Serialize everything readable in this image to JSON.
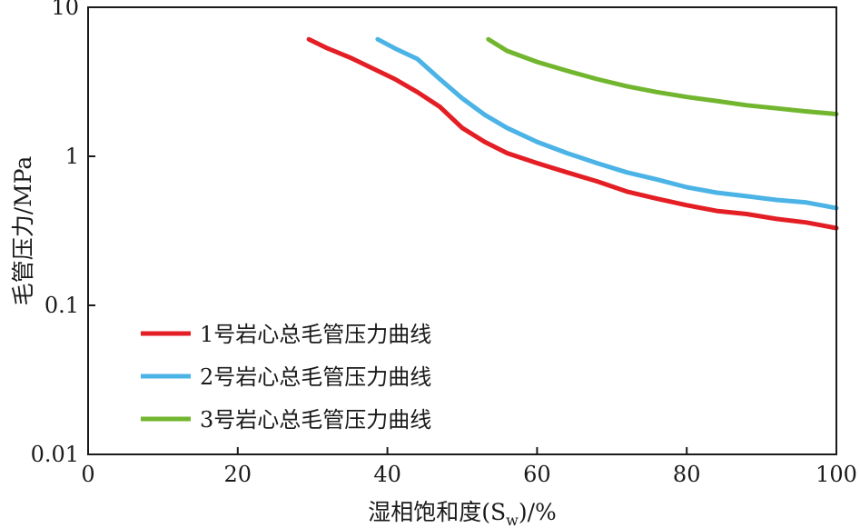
{
  "chart_data": {
    "type": "line",
    "title": "",
    "xlabel": "湿相饱和度(S",
    "xlabel_sub": "w",
    "xlabel_tail": ")/%",
    "ylabel": "毛管压力/MPa",
    "xlim": [
      0,
      100
    ],
    "ylim": [
      0.01,
      10
    ],
    "yscale": "log",
    "x_ticks": [
      "0",
      "20",
      "40",
      "60",
      "80",
      "100"
    ],
    "y_ticks": [
      "0.01",
      "0.1",
      "1",
      "10"
    ],
    "legend_position": "lower-left",
    "series": [
      {
        "name": "1号岩心总毛管压力曲线",
        "color": "#e31e24",
        "x": [
          29.5,
          32,
          35,
          38,
          41,
          44,
          47,
          50,
          53,
          56,
          60,
          64,
          68,
          72,
          76,
          80,
          84,
          88,
          92,
          96,
          100
        ],
        "y": [
          6.1,
          5.3,
          4.6,
          3.9,
          3.3,
          2.7,
          2.15,
          1.55,
          1.25,
          1.05,
          0.9,
          0.78,
          0.68,
          0.58,
          0.52,
          0.47,
          0.43,
          0.41,
          0.38,
          0.36,
          0.33
        ]
      },
      {
        "name": "2号岩心总毛管压力曲线",
        "color": "#4bb3e6",
        "x": [
          38.7,
          41,
          44,
          47,
          50,
          53,
          56,
          60,
          64,
          68,
          72,
          76,
          80,
          84,
          88,
          92,
          96,
          100
        ],
        "y": [
          6.1,
          5.3,
          4.5,
          3.3,
          2.45,
          1.9,
          1.55,
          1.25,
          1.05,
          0.9,
          0.78,
          0.7,
          0.62,
          0.57,
          0.54,
          0.51,
          0.49,
          0.45
        ]
      },
      {
        "name": "3号岩心总毛管压力曲线",
        "color": "#72b62f",
        "x": [
          53.5,
          56,
          60,
          64,
          68,
          72,
          76,
          80,
          84,
          88,
          92,
          96,
          100
        ],
        "y": [
          6.1,
          5.1,
          4.3,
          3.75,
          3.3,
          2.95,
          2.7,
          2.5,
          2.35,
          2.2,
          2.1,
          2.0,
          1.92
        ]
      }
    ]
  }
}
